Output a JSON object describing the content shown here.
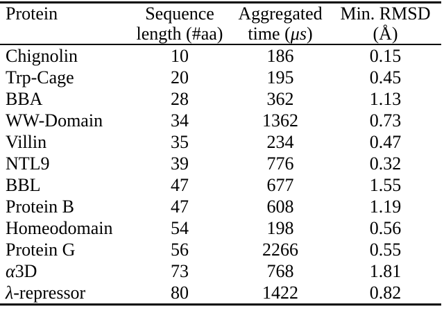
{
  "page": {
    "background": "#ffffff",
    "text_color": "#000000",
    "rule_color": "#000000"
  },
  "table": {
    "columns": [
      {
        "id": "protein",
        "align": "left",
        "header_lines": [
          [
            {
              "t": "Protein"
            }
          ]
        ]
      },
      {
        "id": "seq_length",
        "align": "center",
        "header_lines": [
          [
            {
              "t": "Sequence"
            }
          ],
          [
            {
              "t": "length (#aa)"
            }
          ]
        ]
      },
      {
        "id": "agg_time",
        "align": "center",
        "header_lines": [
          [
            {
              "t": "Aggregated"
            }
          ],
          [
            {
              "t": "time ("
            },
            {
              "t": "μs",
              "i": true
            },
            {
              "t": ")"
            }
          ]
        ]
      },
      {
        "id": "min_rmsd",
        "align": "center",
        "header_lines": [
          [
            {
              "t": "Min. RMSD"
            }
          ],
          [
            {
              "t": "(Å)"
            }
          ]
        ]
      }
    ],
    "rows": [
      {
        "protein": [
          {
            "t": "Chignolin"
          }
        ],
        "seq_length": "10",
        "agg_time": "186",
        "min_rmsd": "0.15"
      },
      {
        "protein": [
          {
            "t": "Trp-Cage"
          }
        ],
        "seq_length": "20",
        "agg_time": "195",
        "min_rmsd": "0.45"
      },
      {
        "protein": [
          {
            "t": "BBA"
          }
        ],
        "seq_length": "28",
        "agg_time": "362",
        "min_rmsd": "1.13"
      },
      {
        "protein": [
          {
            "t": "WW-Domain"
          }
        ],
        "seq_length": "34",
        "agg_time": "1362",
        "min_rmsd": "0.73"
      },
      {
        "protein": [
          {
            "t": "Villin"
          }
        ],
        "seq_length": "35",
        "agg_time": "234",
        "min_rmsd": "0.47"
      },
      {
        "protein": [
          {
            "t": "NTL9"
          }
        ],
        "seq_length": "39",
        "agg_time": "776",
        "min_rmsd": "0.32"
      },
      {
        "protein": [
          {
            "t": "BBL"
          }
        ],
        "seq_length": "47",
        "agg_time": "677",
        "min_rmsd": "1.55"
      },
      {
        "protein": [
          {
            "t": "Protein B"
          }
        ],
        "seq_length": "47",
        "agg_time": "608",
        "min_rmsd": "1.19"
      },
      {
        "protein": [
          {
            "t": "Homeodomain"
          }
        ],
        "seq_length": "54",
        "agg_time": "198",
        "min_rmsd": "0.56"
      },
      {
        "protein": [
          {
            "t": "Protein G"
          }
        ],
        "seq_length": "56",
        "agg_time": "2266",
        "min_rmsd": "0.55"
      },
      {
        "protein": [
          {
            "t": "α",
            "i": true
          },
          {
            "t": "3D"
          }
        ],
        "seq_length": "73",
        "agg_time": "768",
        "min_rmsd": "1.81"
      },
      {
        "protein": [
          {
            "t": "λ",
            "i": true
          },
          {
            "t": "-repressor"
          }
        ],
        "seq_length": "80",
        "agg_time": "1422",
        "min_rmsd": "0.82"
      }
    ]
  }
}
